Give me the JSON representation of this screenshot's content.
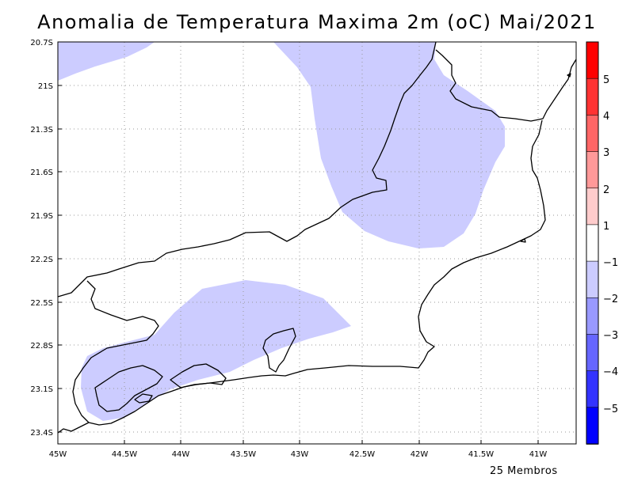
{
  "title": "Anomalia de Temperatura Maxima 2m (oC) Mai/2021",
  "footer_note": "25 Membros",
  "lat_ticks": [
    "20.7S",
    "21S",
    "21.3S",
    "21.6S",
    "21.9S",
    "22.2S",
    "22.5S",
    "22.8S",
    "23.1S",
    "23.4S"
  ],
  "lon_ticks": [
    "45W",
    "44.5W",
    "44W",
    "43.5W",
    "43W",
    "42.5W",
    "42W",
    "41.5W",
    "41W"
  ],
  "colorbar": {
    "labels": [
      "5",
      "4",
      "3",
      "2",
      "1",
      "−1",
      "−2",
      "−3",
      "−4",
      "−5"
    ],
    "colors": [
      "#ff0000",
      "#ff3333",
      "#ff6666",
      "#ff9999",
      "#ffcccc",
      "#ffffff",
      "#ccccff",
      "#9999ff",
      "#6666ff",
      "#3333ff",
      "#0000ff"
    ]
  },
  "shading": {
    "anomaly_range_label": "-1",
    "color": "#ccccff"
  }
}
